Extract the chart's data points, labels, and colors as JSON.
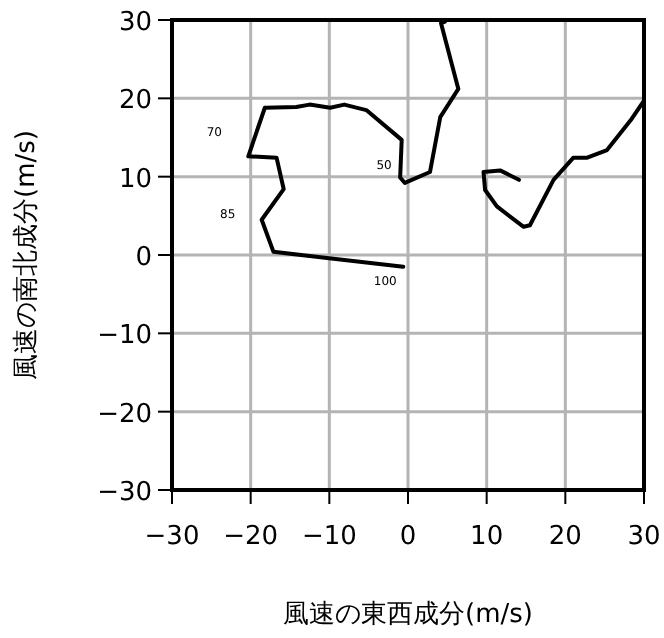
{
  "chart_data": {
    "type": "line",
    "xlabel": "風速の東西成分(m/s)",
    "ylabel": "風速の南北成分(m/s)",
    "xlim": [
      -30,
      30
    ],
    "ylim": [
      -30,
      30
    ],
    "xticks": [
      -30,
      -20,
      -10,
      0,
      10,
      20,
      30
    ],
    "yticks": [
      -30,
      -20,
      -10,
      0,
      10,
      20,
      30
    ],
    "grid": true,
    "marker": "none",
    "line_style": "solid",
    "series": [
      {
        "color": "#000000",
        "x": [
          -0.6,
          -17.1,
          -18.6,
          -15.8,
          -16.7,
          -20.3,
          -18.2,
          -14.2,
          -12.5,
          -9.9,
          -8.1,
          -5.3,
          -0.8,
          -1.0,
          -0.4,
          2.8,
          4.1,
          6.4,
          4.2,
          4.7,
          null,
          14.1,
          11.7,
          9.6,
          9.8,
          11.3,
          14.7,
          15.5,
          18.5,
          21.0,
          22.7,
          25.3,
          28.3,
          30
        ],
        "values": [
          -1.5,
          0.4,
          4.5,
          8.4,
          12.4,
          12.6,
          18.8,
          18.9,
          19.2,
          18.8,
          19.2,
          18.5,
          14.7,
          9.9,
          9.2,
          10.6,
          17.6,
          21.2,
          29.6,
          29.8,
          null,
          9.6,
          10.8,
          10.6,
          8.3,
          6.2,
          3.6,
          3.8,
          9.6,
          12.4,
          12.4,
          13.4,
          17.2,
          19.7
        ]
      }
    ],
    "annotations": [
      {
        "text": "70",
        "x": -20.3,
        "y": 12.6
      },
      {
        "text": "50",
        "x": -1.0,
        "y": 9.9
      },
      {
        "text": "85",
        "x": -18.6,
        "y": 4.5
      },
      {
        "text": "100",
        "x": -0.6,
        "y": -1.5
      }
    ]
  }
}
